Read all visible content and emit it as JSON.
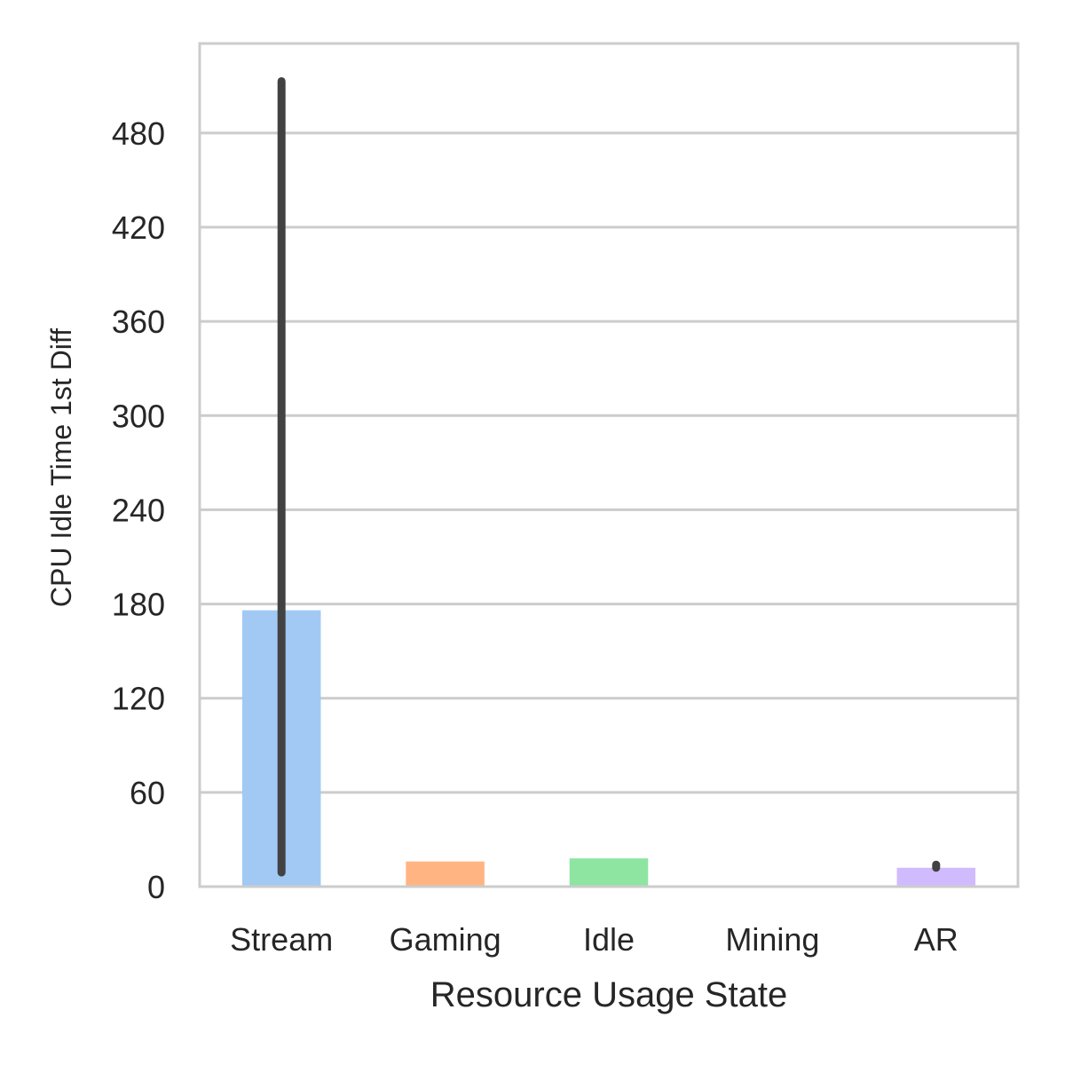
{
  "chart_data": {
    "type": "bar",
    "title": "",
    "xlabel": "Resource Usage State",
    "ylabel": "CPU Idle Time 1st Diff",
    "categories": [
      "Stream",
      "Gaming",
      "Idle",
      "Mining",
      "AR"
    ],
    "values": [
      176,
      16,
      18,
      0,
      12
    ],
    "error_bars": [
      {
        "low": 9,
        "high": 513
      },
      {
        "low": 16,
        "high": 16
      },
      {
        "low": 18,
        "high": 18
      },
      {
        "low": 0,
        "high": 0
      },
      {
        "low": 12,
        "high": 14
      }
    ],
    "colors": [
      "#a1c9f4",
      "#ffb482",
      "#8de5a1",
      "#ff9f9b",
      "#d0bbff"
    ],
    "yticks": [
      0,
      60,
      120,
      180,
      240,
      300,
      360,
      420,
      480
    ],
    "ylim": [
      0,
      537
    ],
    "grid": "horizontal",
    "legend": "none"
  }
}
